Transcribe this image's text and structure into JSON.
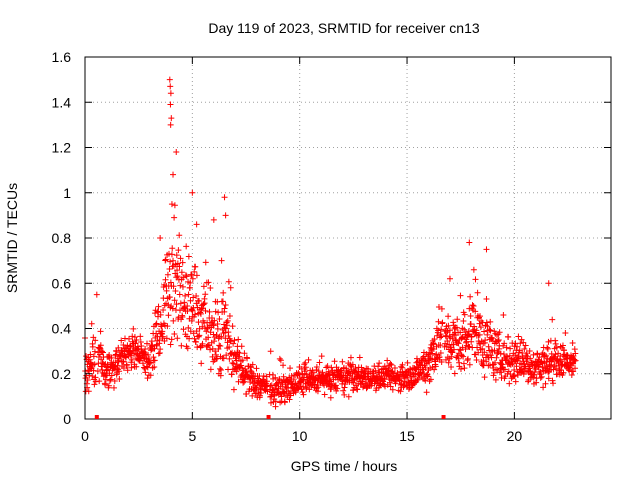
{
  "chart_data": {
    "type": "scatter",
    "title": "Day 119 of 2023, SRMTID for receiver cn13",
    "xlabel": "GPS time / hours",
    "ylabel": "SRMTID / TECUs",
    "xlim": [
      0,
      24.5
    ],
    "ylim": [
      0,
      1.6
    ],
    "x_ticks": [
      0,
      5,
      10,
      15,
      20
    ],
    "x_tick_labels": [
      "0",
      "5",
      "10",
      "15",
      "20"
    ],
    "y_ticks": [
      0,
      0.2,
      0.4,
      0.6,
      0.8,
      1.0,
      1.2,
      1.4,
      1.6
    ],
    "y_tick_labels": [
      "0",
      "0.2",
      "0.4",
      "0.6",
      "0.8",
      "1",
      "1.2",
      "1.4",
      "1.6"
    ],
    "grid": true,
    "marker": "plus",
    "series_color": "#ff0000",
    "gap_markers_x": [
      0.55,
      8.55,
      16.7
    ],
    "profile": {
      "hour": [
        0.0,
        0.3,
        0.7,
        1.0,
        1.5,
        2.0,
        2.5,
        3.0,
        3.5,
        3.8,
        4.1,
        4.5,
        5.0,
        5.5,
        6.0,
        6.5,
        7.0,
        7.5,
        8.0,
        8.5,
        9.0,
        9.5,
        10.0,
        11.0,
        12.0,
        13.0,
        14.0,
        15.0,
        15.5,
        16.0,
        16.5,
        17.0,
        17.5,
        18.0,
        18.5,
        19.0,
        19.5,
        20.0,
        20.5,
        21.0,
        21.5,
        22.0,
        22.5,
        22.8
      ],
      "median": [
        0.2,
        0.22,
        0.3,
        0.2,
        0.25,
        0.3,
        0.3,
        0.25,
        0.4,
        0.55,
        0.6,
        0.55,
        0.5,
        0.45,
        0.35,
        0.4,
        0.25,
        0.2,
        0.15,
        0.15,
        0.12,
        0.14,
        0.16,
        0.17,
        0.18,
        0.18,
        0.18,
        0.18,
        0.2,
        0.25,
        0.35,
        0.35,
        0.3,
        0.4,
        0.35,
        0.3,
        0.25,
        0.25,
        0.25,
        0.22,
        0.25,
        0.25,
        0.25,
        0.25
      ],
      "spread": [
        0.08,
        0.1,
        0.1,
        0.07,
        0.07,
        0.08,
        0.06,
        0.08,
        0.15,
        0.2,
        0.25,
        0.22,
        0.2,
        0.15,
        0.15,
        0.18,
        0.1,
        0.08,
        0.06,
        0.06,
        0.05,
        0.05,
        0.05,
        0.05,
        0.06,
        0.05,
        0.05,
        0.05,
        0.06,
        0.1,
        0.12,
        0.12,
        0.12,
        0.15,
        0.15,
        0.1,
        0.1,
        0.1,
        0.08,
        0.08,
        0.08,
        0.08,
        0.06,
        0.06
      ]
    },
    "peaks": [
      {
        "hour": 0.55,
        "value": 0.55
      },
      {
        "hour": 3.95,
        "value": 1.5
      },
      {
        "hour": 3.97,
        "value": 1.47
      },
      {
        "hour": 4.0,
        "value": 1.44
      },
      {
        "hour": 3.98,
        "value": 1.39
      },
      {
        "hour": 4.02,
        "value": 1.33
      },
      {
        "hour": 3.99,
        "value": 1.3
      },
      {
        "hour": 4.25,
        "value": 1.18
      },
      {
        "hour": 4.1,
        "value": 1.08
      },
      {
        "hour": 5.0,
        "value": 1.0
      },
      {
        "hour": 6.5,
        "value": 0.98
      },
      {
        "hour": 4.05,
        "value": 0.95
      },
      {
        "hour": 6.55,
        "value": 0.9
      },
      {
        "hour": 6.0,
        "value": 0.88
      },
      {
        "hour": 5.2,
        "value": 0.86
      },
      {
        "hour": 3.5,
        "value": 0.8
      },
      {
        "hour": 17.9,
        "value": 0.78
      },
      {
        "hour": 18.7,
        "value": 0.75
      },
      {
        "hour": 17.0,
        "value": 0.62
      },
      {
        "hour": 21.6,
        "value": 0.6
      }
    ]
  }
}
